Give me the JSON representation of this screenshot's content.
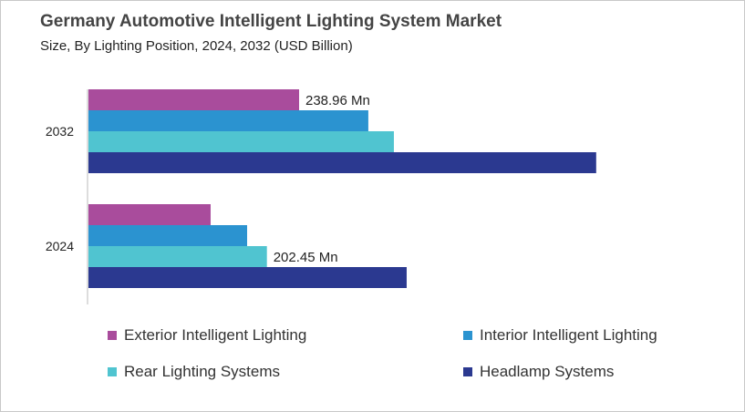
{
  "chart_data": {
    "type": "bar",
    "orientation": "horizontal",
    "title": "Germany Automotive Intelligent Lighting System Market",
    "subtitle": "Size, By Lighting Position, 2024, 2032 (USD Billion)",
    "categories": [
      "2032",
      "2024"
    ],
    "series": [
      {
        "name": "Exterior Intelligent Lighting",
        "color": "#a94c9c",
        "values": [
          238.96,
          138.6
        ]
      },
      {
        "name": "Interior Intelligent Lighting",
        "color": "#2b93d0",
        "values": [
          317.5,
          180.0
        ]
      },
      {
        "name": "Rear Lighting Systems",
        "color": "#50c4d0",
        "values": [
          346.5,
          202.45
        ]
      },
      {
        "name": "Headlamp Systems",
        "color": "#2b3990",
        "values": [
          576.0,
          361.0
        ]
      }
    ],
    "data_labels": [
      {
        "category": "2032",
        "series": "Exterior Intelligent Lighting",
        "text": "238.96 Mn"
      },
      {
        "category": "2024",
        "series": "Rear Lighting Systems",
        "text": "202.45 Mn"
      }
    ],
    "xlim": [
      0,
      600
    ],
    "grid": false,
    "legend_placement": "bottom"
  }
}
